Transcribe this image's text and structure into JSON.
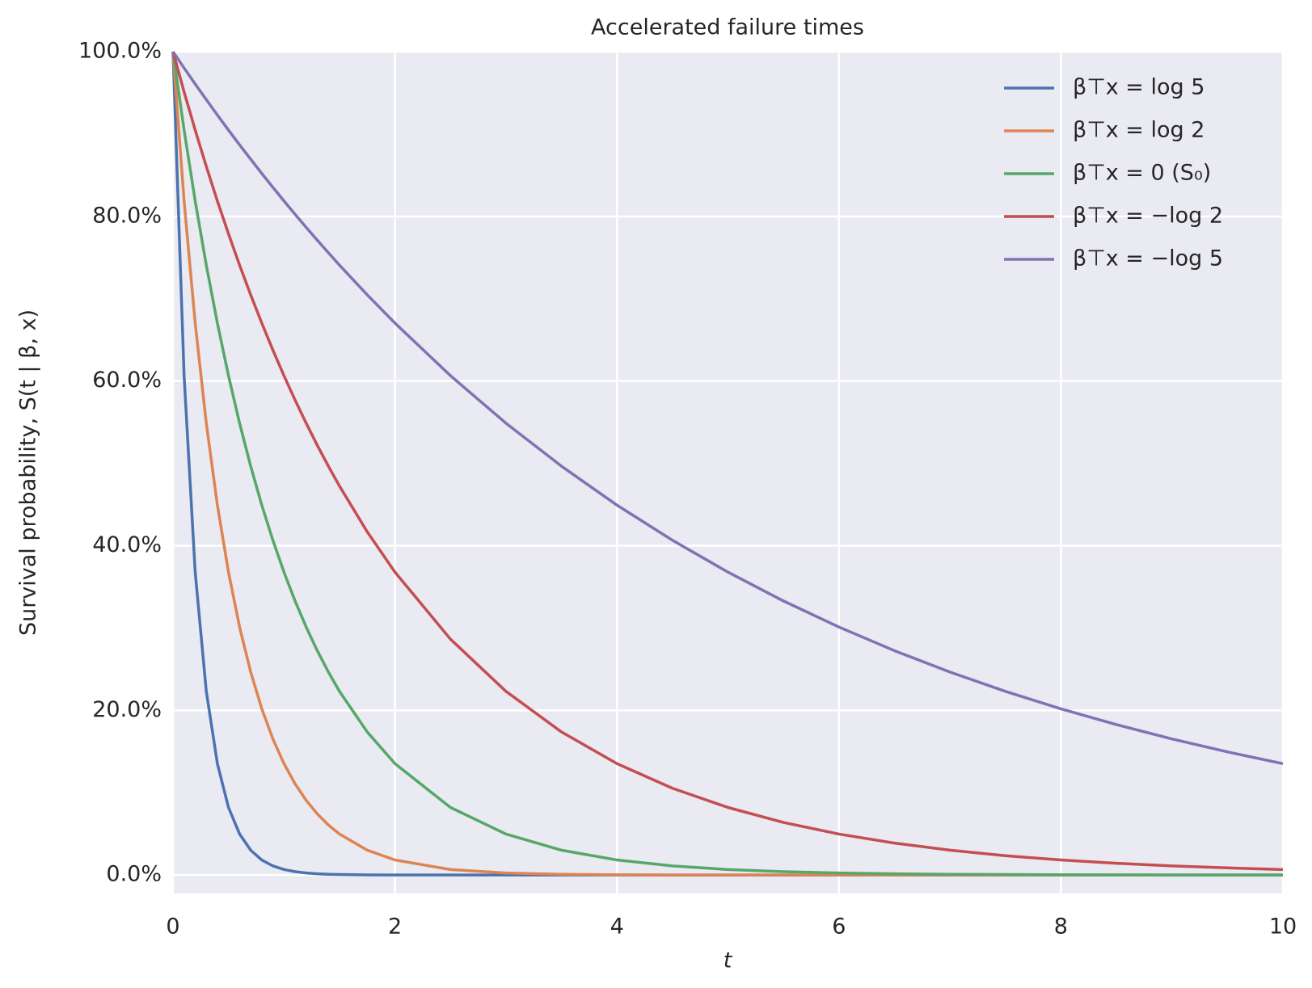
{
  "chart_data": {
    "type": "line",
    "title": "Accelerated failure times",
    "x_label": "t",
    "y_label": "Survival probability, S(t | β, x)",
    "x": [
      0,
      0.1,
      0.2,
      0.3,
      0.4,
      0.5,
      0.6,
      0.7,
      0.8,
      0.9,
      1.0,
      1.1,
      1.2,
      1.3,
      1.4,
      1.5,
      1.75,
      2,
      2.5,
      3,
      3.5,
      4,
      4.5,
      5,
      5.5,
      6,
      6.5,
      7,
      7.5,
      8,
      8.5,
      9,
      9.5,
      10
    ],
    "series": [
      {
        "name": "β⊤x = log 5",
        "color": "#4c72b0",
        "values": [
          100,
          60.65,
          36.79,
          22.31,
          13.53,
          8.21,
          4.98,
          3.02,
          1.83,
          1.11,
          0.67,
          0.41,
          0.25,
          0.15,
          0.09,
          0.06,
          0.02,
          0,
          0,
          0,
          0,
          0,
          0,
          0,
          0,
          0,
          0,
          0,
          0,
          0,
          0,
          0,
          0,
          0
        ]
      },
      {
        "name": "β⊤x = log 2",
        "color": "#dd8452",
        "values": [
          100,
          81.87,
          67.03,
          54.88,
          44.93,
          36.79,
          30.12,
          24.66,
          20.19,
          16.53,
          13.53,
          11.08,
          9.07,
          7.43,
          6.08,
          4.98,
          3.02,
          1.83,
          0.67,
          0.25,
          0.09,
          0.03,
          0.01,
          0,
          0,
          0,
          0,
          0,
          0,
          0,
          0,
          0,
          0,
          0
        ]
      },
      {
        "name": "β⊤x = 0 (S₀)",
        "color": "#55a868",
        "values": [
          100,
          90.48,
          81.87,
          74.08,
          67.03,
          60.65,
          54.88,
          49.66,
          44.93,
          40.66,
          36.79,
          33.29,
          30.12,
          27.25,
          24.66,
          22.31,
          17.38,
          13.53,
          8.21,
          4.98,
          3.02,
          1.83,
          1.11,
          0.67,
          0.41,
          0.25,
          0.15,
          0.09,
          0.06,
          0.03,
          0.02,
          0.01,
          0.01,
          0
        ]
      },
      {
        "name": "β⊤x = −log 2",
        "color": "#c44e52",
        "values": [
          100,
          95.12,
          90.48,
          86.07,
          81.87,
          77.88,
          74.08,
          70.47,
          67.03,
          63.76,
          60.65,
          57.69,
          54.88,
          52.2,
          49.66,
          47.24,
          41.69,
          36.79,
          28.65,
          22.31,
          17.38,
          13.53,
          10.54,
          8.21,
          6.39,
          4.98,
          3.88,
          3.02,
          2.35,
          1.83,
          1.43,
          1.11,
          0.87,
          0.67
        ]
      },
      {
        "name": "β⊤x = −log 5",
        "color": "#8172b3",
        "values": [
          100,
          98.02,
          96.08,
          94.18,
          92.31,
          90.48,
          88.69,
          86.94,
          85.21,
          83.53,
          81.87,
          80.25,
          78.66,
          77.11,
          75.58,
          74.08,
          70.47,
          67.03,
          60.65,
          54.88,
          49.66,
          44.93,
          40.66,
          36.79,
          33.29,
          30.12,
          27.25,
          24.66,
          22.31,
          20.19,
          18.27,
          16.53,
          14.96,
          13.53
        ]
      }
    ],
    "xlim": [
      0,
      10
    ],
    "xticks": [
      0,
      2,
      4,
      6,
      8,
      10
    ],
    "ylim": [
      -2.24,
      100
    ],
    "yticks": [
      {
        "value": 0,
        "label": "0.0%"
      },
      {
        "value": 20,
        "label": "20.0%"
      },
      {
        "value": 40,
        "label": "40.0%"
      },
      {
        "value": 60,
        "label": "60.0%"
      },
      {
        "value": 80,
        "label": "80.0%"
      },
      {
        "value": 100,
        "label": "100.0%"
      }
    ],
    "grid": true,
    "legend": "upper right"
  }
}
